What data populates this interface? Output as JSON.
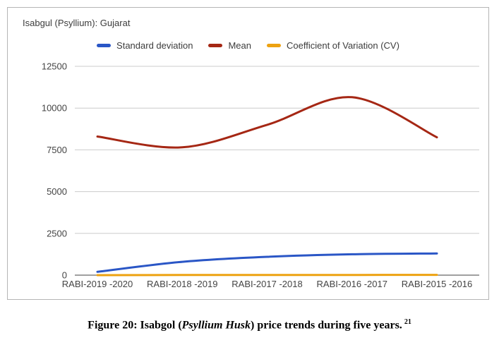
{
  "chart_data": {
    "type": "line",
    "curve": "smooth",
    "title": "Isabgul (Psyllium): Gujarat",
    "categories": [
      "RABI-2019 -2020",
      "RABI-2018 -2019",
      "RABI-2017 -2018",
      "RABI-2016 -2017",
      "RABI-2015 -2016"
    ],
    "series": [
      {
        "name": "Standard deviation",
        "color": "#2a56c6",
        "values": [
          200,
          800,
          1100,
          1250,
          1300
        ]
      },
      {
        "name": "Mean",
        "color": "#a52714",
        "values": [
          8300,
          7650,
          9000,
          10650,
          8250
        ]
      },
      {
        "name": "Coefficient of Variation (CV)",
        "color": "#eda211",
        "values": [
          2,
          10,
          12,
          12,
          16
        ]
      }
    ],
    "xlabel": "",
    "ylabel": "",
    "ylim": [
      0,
      12500
    ],
    "yticks": [
      0,
      2500,
      5000,
      7500,
      10000,
      12500
    ],
    "grid": true,
    "legend_position": "top",
    "colors": {
      "gridline": "#cccccc",
      "baseline": "#424242",
      "axis_text": "#444444",
      "title_text": "#3c3c3c"
    }
  },
  "figure": {
    "caption": {
      "prefix": "Figure 20: Isabgol (",
      "italic": "Psyllium Husk",
      "suffix": ") price trends during five years.",
      "superscript": "21"
    }
  }
}
